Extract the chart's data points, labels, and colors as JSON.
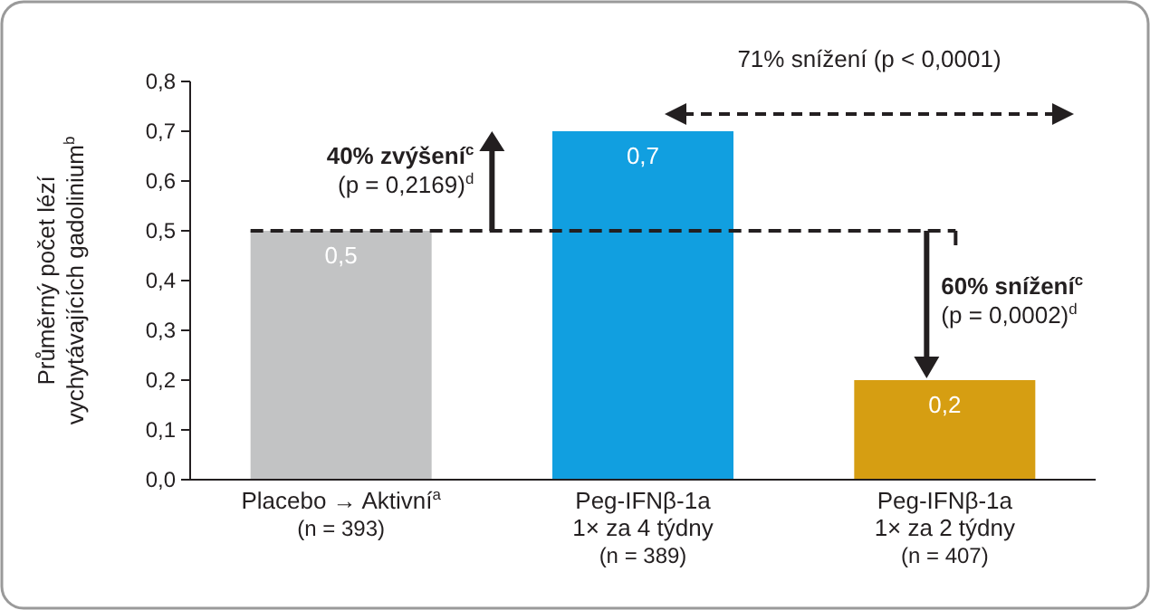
{
  "chart_data": {
    "type": "bar",
    "ylabel": "Průměrný počet lézí\nvychytávajících gadolinium$^{b}$",
    "categories": [
      "Placebo → Aktivní$^{a}$\n(n = 393)",
      "Peg-IFNβ-1a\n1× za 4 týdny\n(n = 389)",
      "Peg-IFNβ-1a\n1× za 2 týdny\n(n = 407)"
    ],
    "values": [
      0.5,
      0.7,
      0.2
    ],
    "colors": [
      "#c2c3c4",
      "#119fe0",
      "#d69e12"
    ],
    "value_labels": [
      "0,5",
      "0,7",
      "0,2"
    ],
    "ylim": [
      0,
      0.8
    ],
    "yticks": [
      {
        "value": 0,
        "label": "0,0"
      },
      {
        "value": 0.1,
        "label": "0,1"
      },
      {
        "value": 0.2,
        "label": "0,2"
      },
      {
        "value": 0.3,
        "label": "0,3"
      },
      {
        "value": 0.4,
        "label": "0,4"
      },
      {
        "value": 0.5,
        "label": "0,5"
      },
      {
        "value": 0.6,
        "label": "0,6"
      },
      {
        "value": 0.7,
        "label": "0,7"
      },
      {
        "value": 0.8,
        "label": "0,8"
      }
    ],
    "ref_lines": [
      {
        "axis": "y",
        "value": 0.5,
        "line_style": "dashed",
        "color": "#231f20"
      }
    ],
    "annotations": [
      "40% zvýšení$^{c}$",
      "(p = 0,2169)$^{d}$",
      "60% snížení$^{c}$",
      "(p = 0,0002)$^{d}$",
      "71% snížení (p < 0,0001)"
    ]
  }
}
